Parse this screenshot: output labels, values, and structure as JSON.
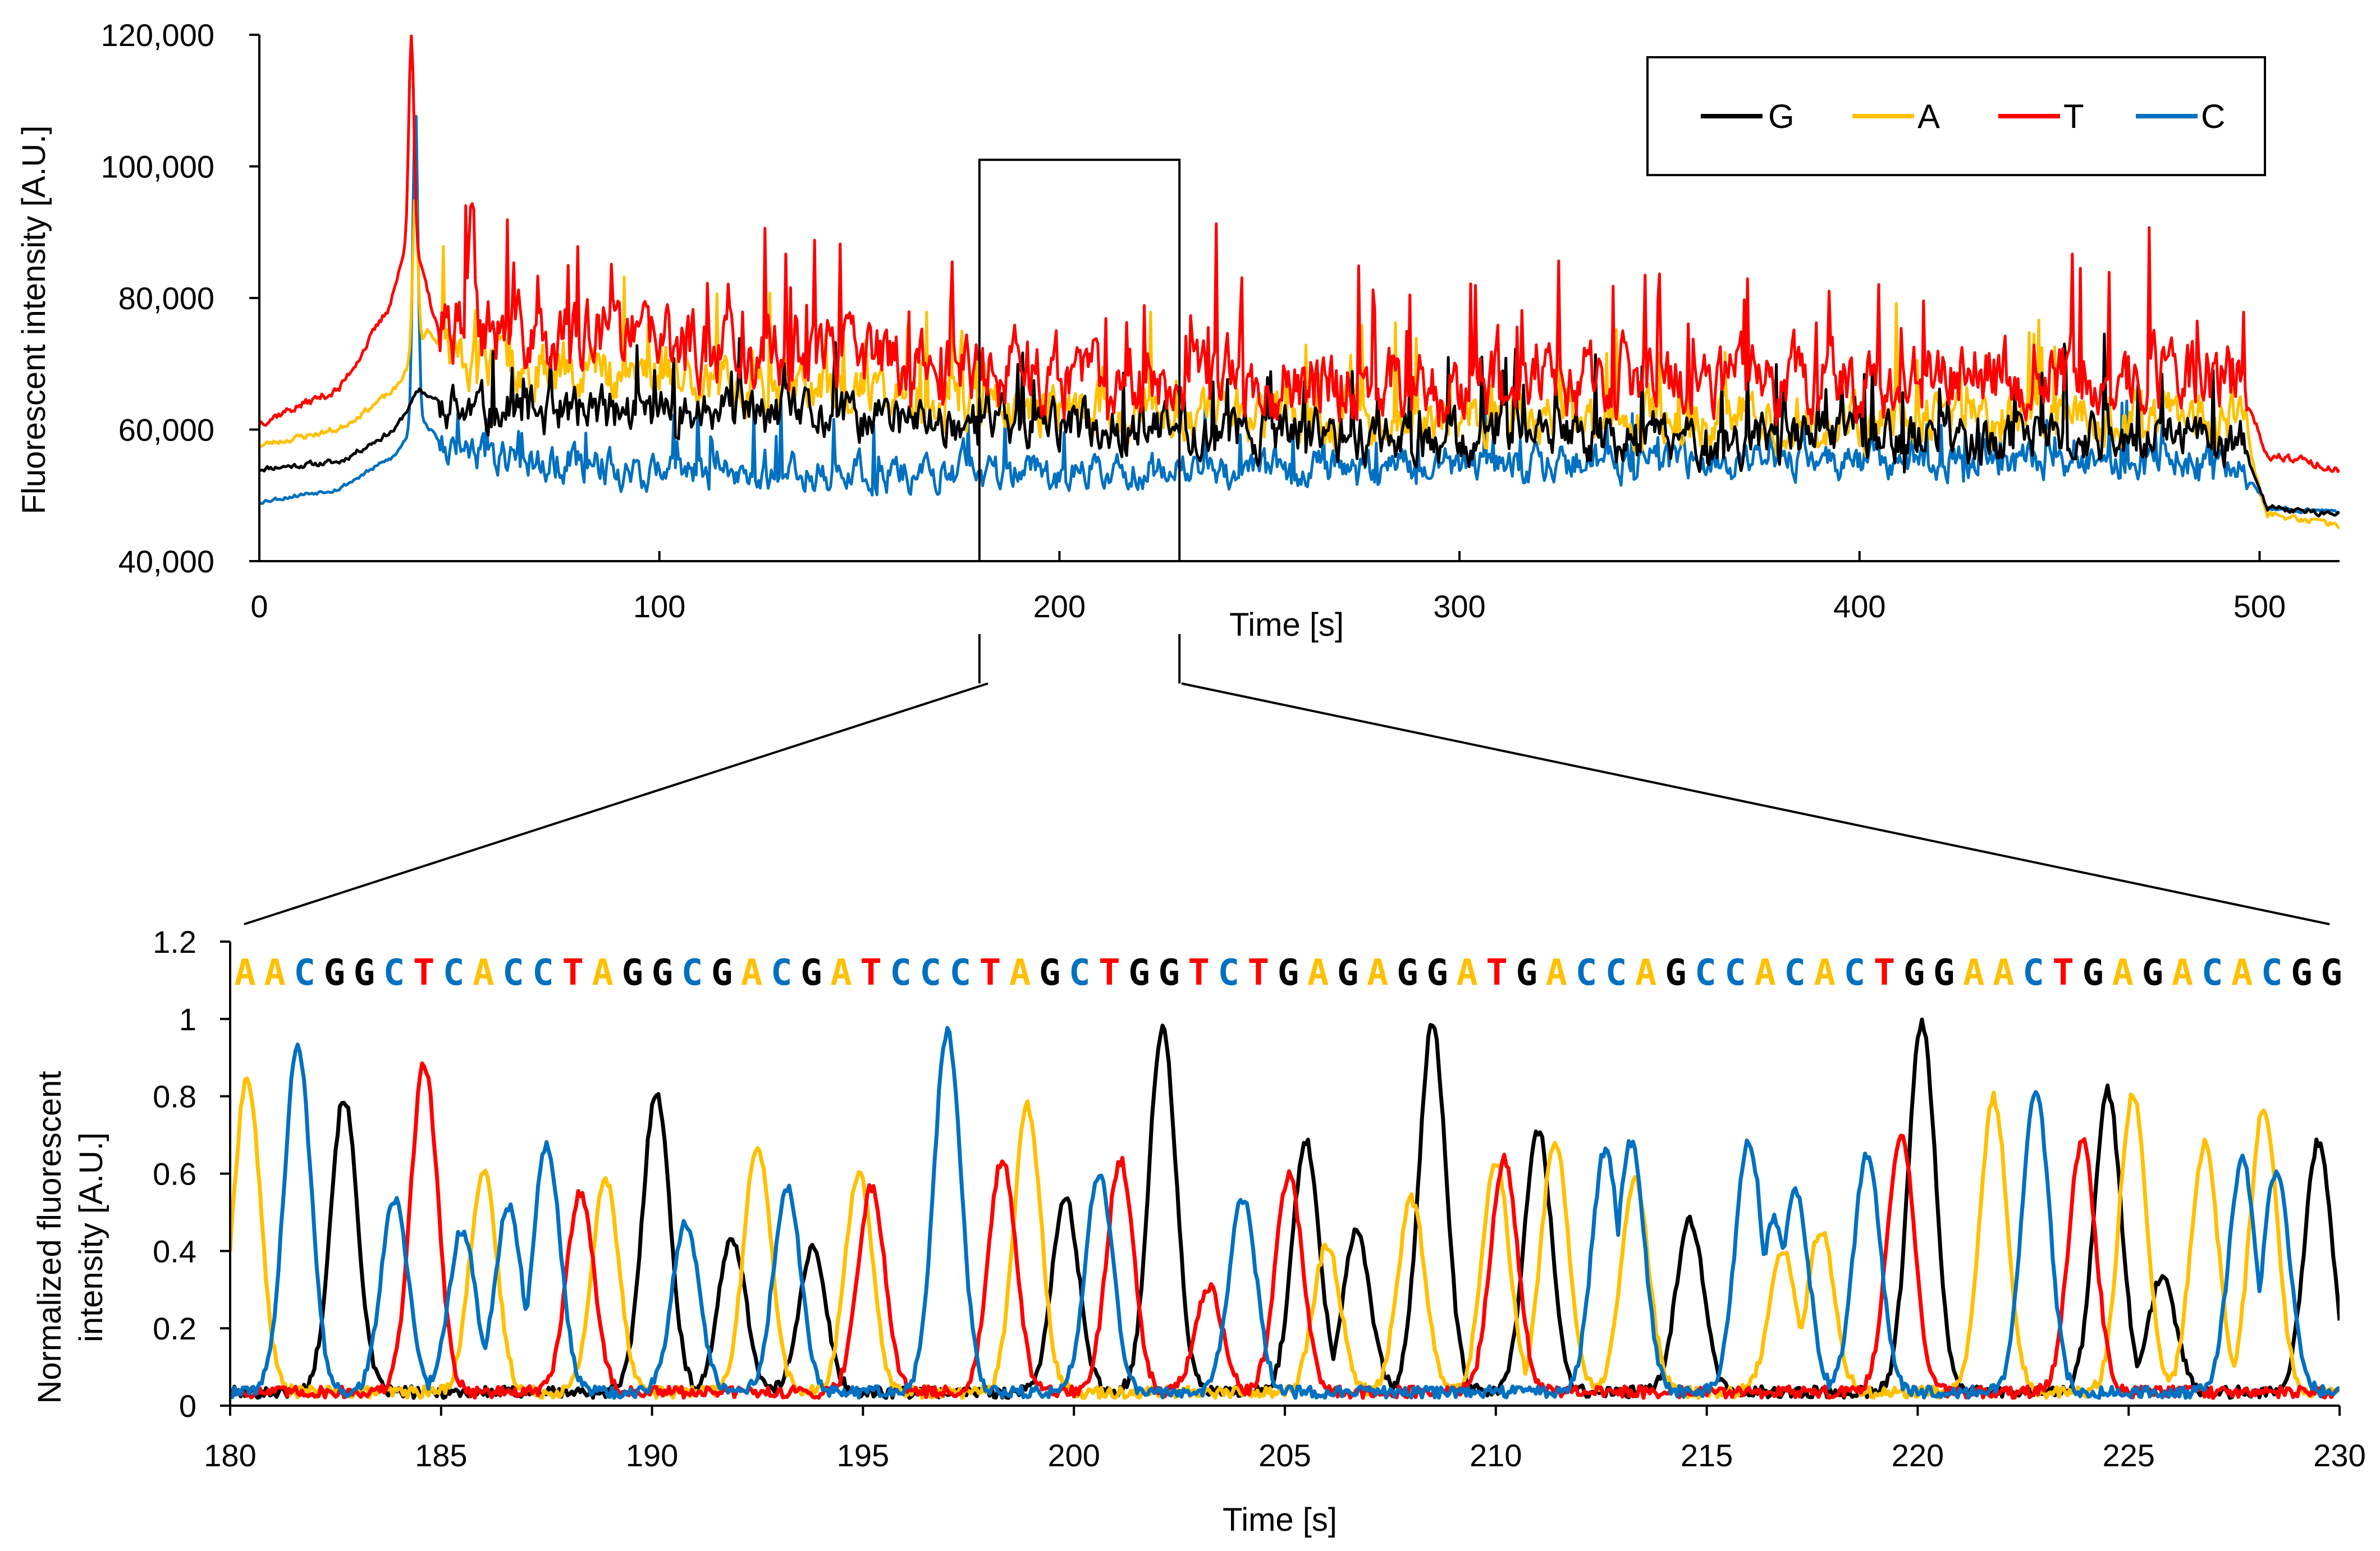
{
  "colors": {
    "G": "#000000",
    "A": "#FFC000",
    "T": "#FF0000",
    "C": "#0070C0"
  },
  "chart_data": [
    {
      "id": "overview",
      "type": "line",
      "title": "",
      "xlabel": "Time [s]",
      "ylabel": "Fluorescent intensity [A.U.]",
      "xlim": [
        0,
        520
      ],
      "ylim": [
        40000,
        120000
      ],
      "x_ticks": [
        0,
        100,
        200,
        300,
        400,
        500
      ],
      "x_tick_labels": [
        "0",
        "100",
        "200",
        "300",
        "400",
        "500"
      ],
      "y_ticks": [
        40000,
        60000,
        80000,
        100000,
        120000
      ],
      "y_tick_labels": [
        "40,000",
        "60,000",
        "80,000",
        "100,000",
        "120,000"
      ],
      "legend": {
        "position": "top-right",
        "entries": [
          "G",
          "A",
          "T",
          "C"
        ]
      },
      "zoom_window": {
        "x": [
          180,
          230
        ],
        "y": [
          40000,
          101000
        ]
      },
      "series": [
        {
          "name": "G",
          "color": "#000000",
          "baseline": [
            [
              0,
              54000
            ],
            [
              20,
              55000
            ],
            [
              34,
              60000
            ],
            [
              40,
              66000
            ],
            [
              50,
              62000
            ],
            [
              100,
              62000
            ],
            [
              150,
              61000
            ],
            [
              200,
              60000
            ],
            [
              300,
              58000
            ],
            [
              400,
              58000
            ],
            [
              495,
              58000
            ],
            [
              502,
              48000
            ],
            [
              520,
              47000
            ]
          ],
          "noise": 6000,
          "seed": 11
        },
        {
          "name": "A",
          "color": "#FFC000",
          "baseline": [
            [
              0,
              57500
            ],
            [
              20,
              60000
            ],
            [
              34,
              66000
            ],
            [
              42,
              75000
            ],
            [
              50,
              70000
            ],
            [
              100,
              68000
            ],
            [
              150,
              65000
            ],
            [
              200,
              62000
            ],
            [
              300,
              61000
            ],
            [
              400,
              61000
            ],
            [
              495,
              61000
            ],
            [
              502,
              47000
            ],
            [
              520,
              45500
            ]
          ],
          "noise": 6500,
          "seed": 23
        },
        {
          "name": "T",
          "color": "#FF0000",
          "baseline": [
            [
              0,
              61000
            ],
            [
              20,
              66000
            ],
            [
              32,
              78000
            ],
            [
              38,
              90000
            ],
            [
              45,
              74000
            ],
            [
              100,
              72000
            ],
            [
              150,
              70000
            ],
            [
              200,
              67000
            ],
            [
              300,
              66000
            ],
            [
              400,
              67000
            ],
            [
              495,
              67000
            ],
            [
              502,
              56000
            ],
            [
              520,
              54000
            ]
          ],
          "noise": 9000,
          "seed": 37
        },
        {
          "name": "C",
          "color": "#0070C0",
          "baseline": [
            [
              0,
              49000
            ],
            [
              20,
              51000
            ],
            [
              34,
              56000
            ],
            [
              40,
              62000
            ],
            [
              48,
              56000
            ],
            [
              100,
              53000
            ],
            [
              200,
              53000
            ],
            [
              300,
              54000
            ],
            [
              400,
              55000
            ],
            [
              495,
              55000
            ],
            [
              502,
              48000
            ],
            [
              520,
              47500
            ]
          ],
          "noise": 4500,
          "seed": 53
        }
      ],
      "spikes": [
        {
          "series": "T",
          "x": 38,
          "y": 120000
        },
        {
          "series": "A",
          "x": 39,
          "y": 96000
        },
        {
          "series": "C",
          "x": 39,
          "y": 110000
        },
        {
          "series": "T",
          "x": 53,
          "y": 95000
        }
      ]
    },
    {
      "id": "zoom",
      "type": "line",
      "title": "",
      "xlabel": "Time [s]",
      "ylabel_lines": [
        "Normalized fluorescent",
        "intensity [A.U.]"
      ],
      "xlim": [
        180,
        230
      ],
      "ylim": [
        0,
        1.2
      ],
      "x_ticks": [
        180,
        185,
        190,
        195,
        200,
        205,
        210,
        215,
        220,
        225,
        230
      ],
      "x_tick_labels": [
        "180",
        "185",
        "190",
        "195",
        "200",
        "205",
        "210",
        "215",
        "220",
        "225",
        "230"
      ],
      "y_ticks": [
        0,
        0.2,
        0.4,
        0.6,
        0.8,
        1,
        1.2
      ],
      "y_tick_labels": [
        "0",
        "0.2",
        "0.4",
        "0.6",
        "0.8",
        "1",
        "1.2"
      ],
      "sequence": "AACGGCTCACCTAGGCGACGATCCCTAGCTGGTCTGAGAGGATGACCAGCCACACTGGAACTGAGACACGG",
      "series": [
        {
          "name": "G",
          "color": "#000000",
          "peaks": [
            [
              182.7,
              0.76
            ],
            [
              190.1,
              0.78
            ],
            [
              191.9,
              0.4
            ],
            [
              193.8,
              0.37
            ],
            [
              199.8,
              0.5
            ],
            [
              202.1,
              0.94
            ],
            [
              205.5,
              0.65
            ],
            [
              206.7,
              0.42
            ],
            [
              208.5,
              0.95
            ],
            [
              211.0,
              0.68
            ],
            [
              214.6,
              0.45
            ],
            [
              220.1,
              0.96
            ],
            [
              224.5,
              0.78
            ],
            [
              225.8,
              0.3
            ],
            [
              229.5,
              0.65
            ]
          ]
        },
        {
          "name": "A",
          "color": "#FFC000",
          "peaks": [
            [
              180.4,
              0.81
            ],
            [
              186.0,
              0.57
            ],
            [
              188.9,
              0.55
            ],
            [
              192.5,
              0.64
            ],
            [
              194.9,
              0.57
            ],
            [
              198.9,
              0.74
            ],
            [
              206.0,
              0.38
            ],
            [
              208.0,
              0.5
            ],
            [
              210.0,
              0.6
            ],
            [
              211.4,
              0.65
            ],
            [
              213.3,
              0.55
            ],
            [
              216.8,
              0.37
            ],
            [
              217.7,
              0.42
            ],
            [
              221.8,
              0.76
            ],
            [
              225.1,
              0.77
            ],
            [
              226.8,
              0.64
            ],
            [
              228.2,
              0.74
            ]
          ]
        },
        {
          "name": "T",
          "color": "#FF0000",
          "peaks": [
            [
              184.6,
              0.85
            ],
            [
              188.3,
              0.52
            ],
            [
              195.2,
              0.53
            ],
            [
              198.3,
              0.6
            ],
            [
              201.1,
              0.6
            ],
            [
              203.2,
              0.27
            ],
            [
              205.1,
              0.56
            ],
            [
              210.2,
              0.6
            ],
            [
              219.6,
              0.67
            ],
            [
              223.9,
              0.65
            ]
          ]
        },
        {
          "name": "C",
          "color": "#0070C0",
          "peaks": [
            [
              181.6,
              0.89
            ],
            [
              183.9,
              0.5
            ],
            [
              185.5,
              0.42
            ],
            [
              186.6,
              0.48
            ],
            [
              187.5,
              0.64
            ],
            [
              190.8,
              0.44
            ],
            [
              193.2,
              0.53
            ],
            [
              197.0,
              0.93
            ],
            [
              200.6,
              0.57
            ],
            [
              204.0,
              0.5
            ],
            [
              212.6,
              0.63
            ],
            [
              213.2,
              0.65
            ],
            [
              216.0,
              0.65
            ],
            [
              216.6,
              0.45
            ],
            [
              217.1,
              0.52
            ],
            [
              218.8,
              0.61
            ],
            [
              222.8,
              0.78
            ],
            [
              227.7,
              0.6
            ],
            [
              228.5,
              0.57
            ]
          ]
        }
      ]
    }
  ]
}
